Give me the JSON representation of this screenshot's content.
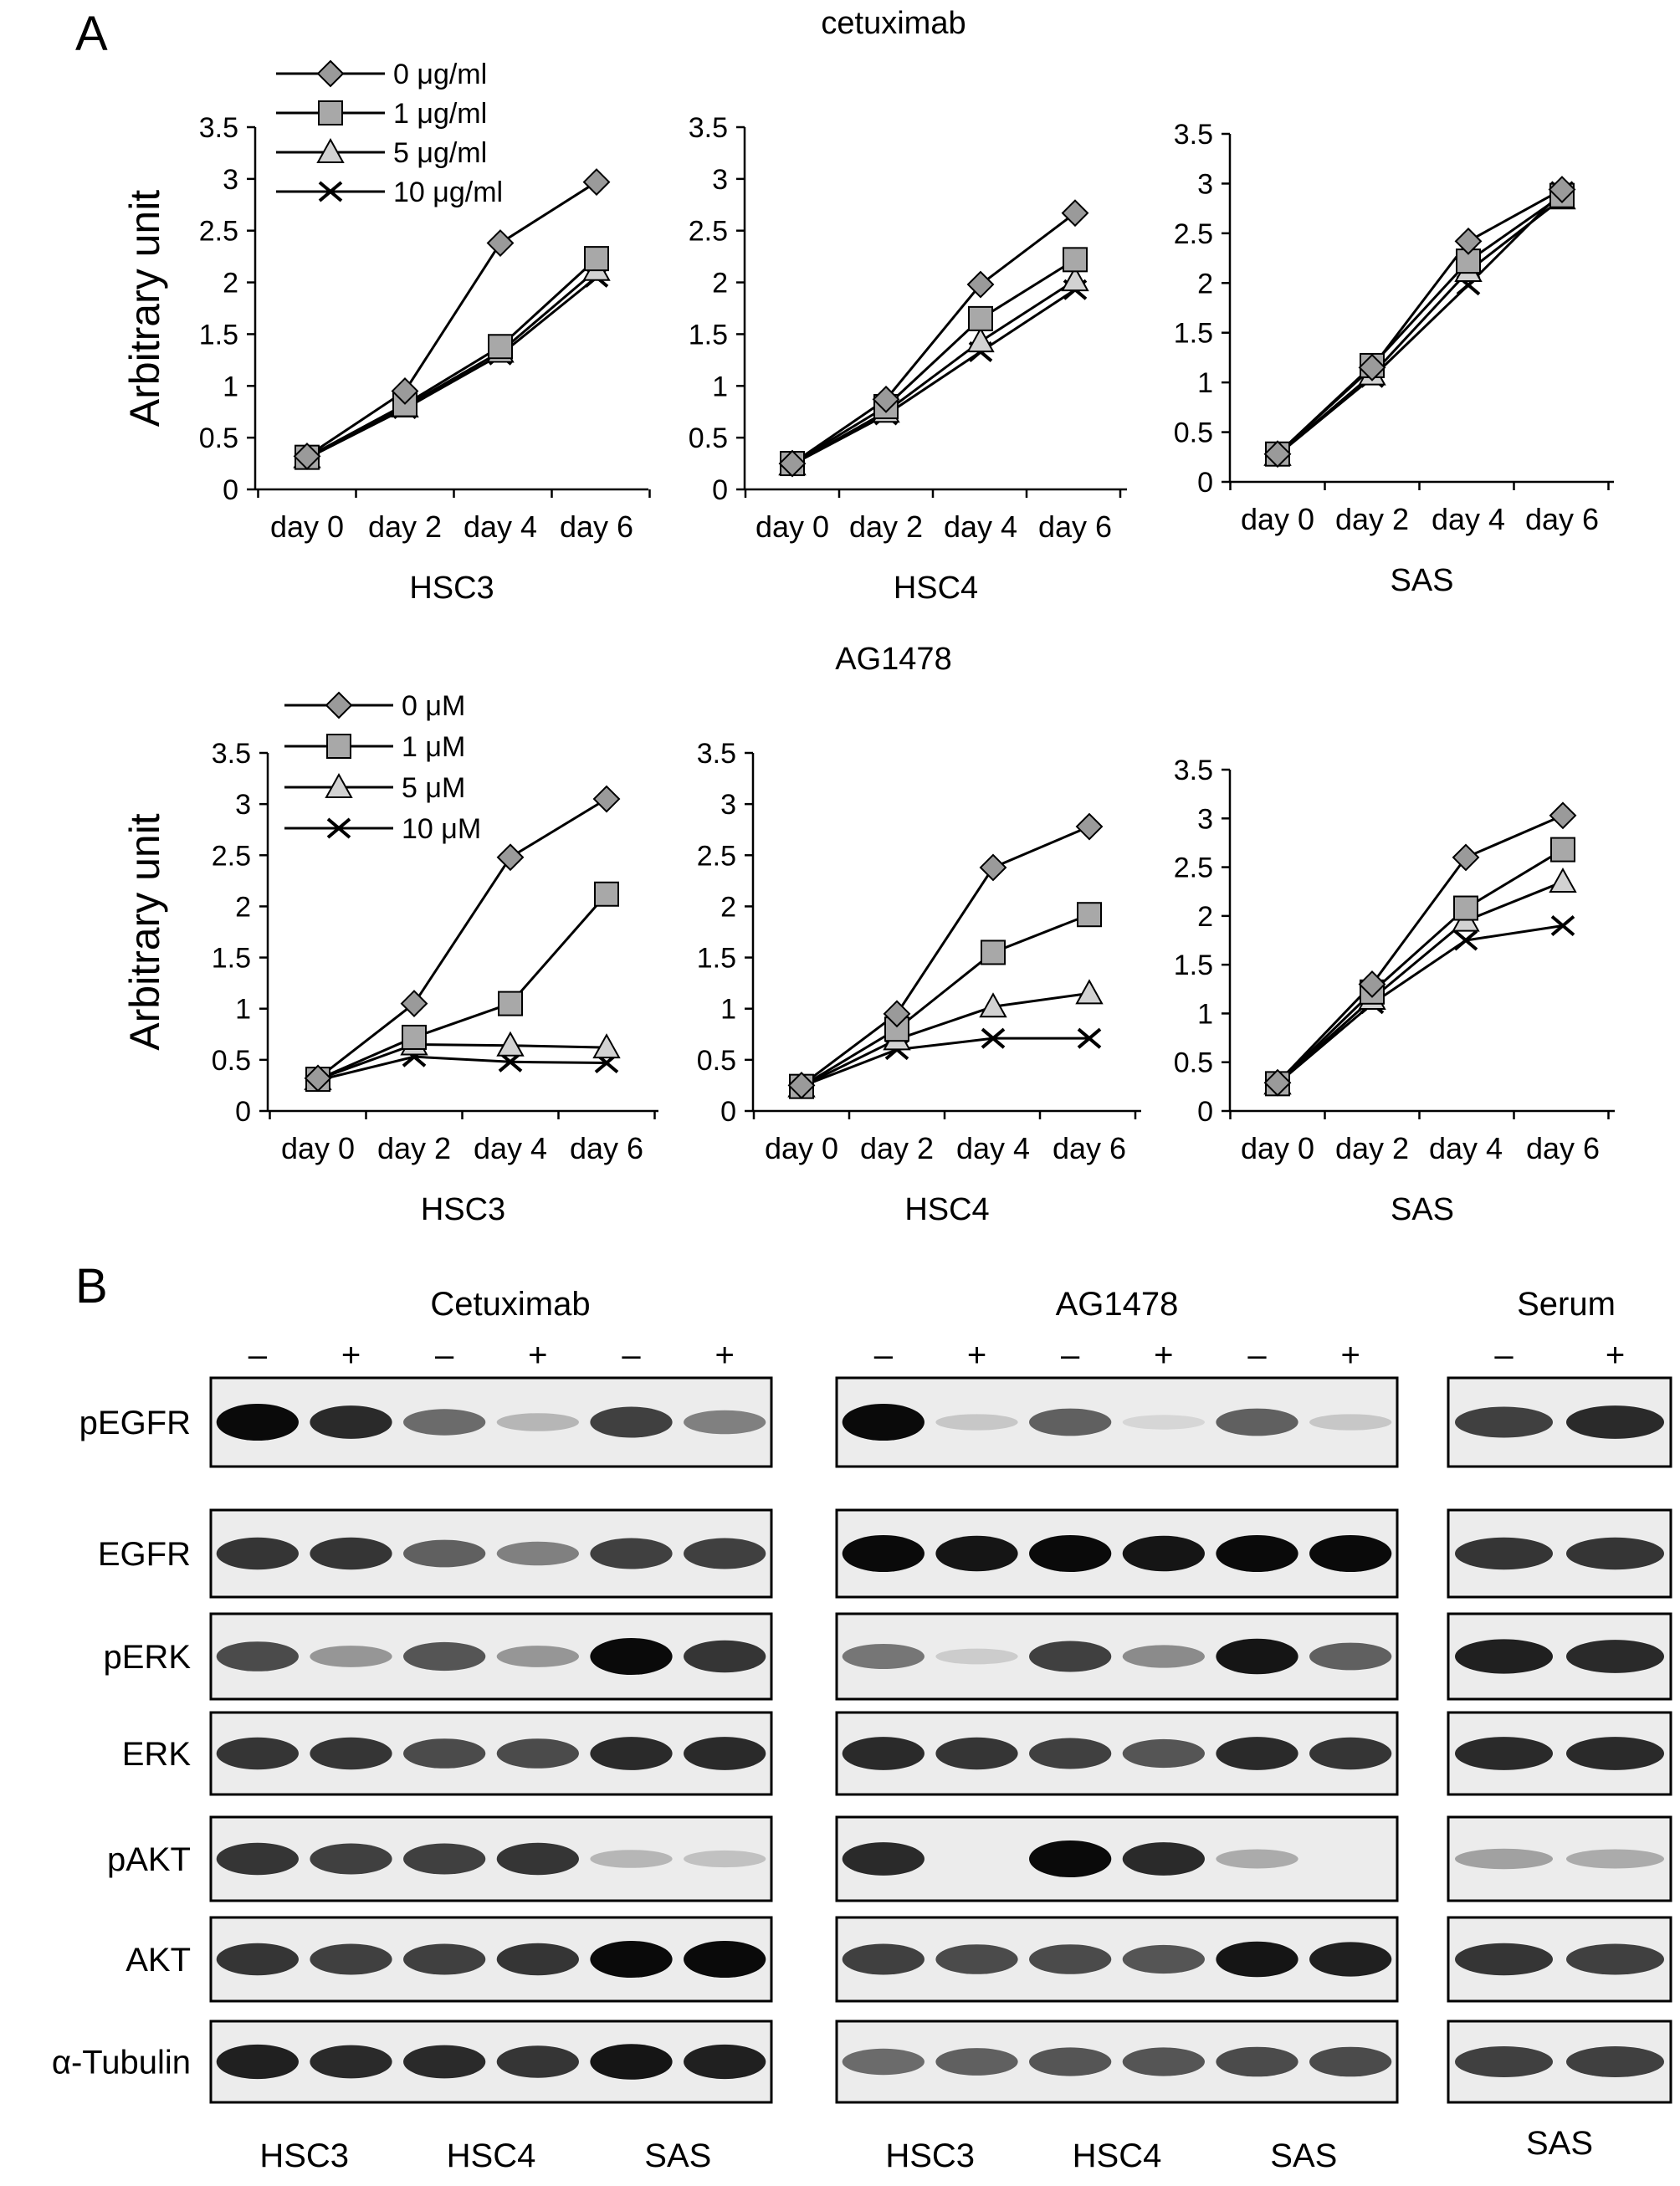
{
  "panel_labels": {
    "a": "A",
    "b": "B"
  },
  "panelA": {
    "cetuximab_title": "cetuximab",
    "ag1478_title": "AG1478",
    "ylabel": "Arbitrary unit",
    "yticks": [
      "0",
      "0.5",
      "1",
      "1.5",
      "2",
      "2.5",
      "3",
      "3.5"
    ],
    "xticks": [
      "day 0",
      "day 2",
      "day 4",
      "day 6"
    ],
    "legend_cetuximab": [
      "0 μg/ml",
      "1 μg/ml",
      "5 μg/ml",
      "10 μg/ml"
    ],
    "legend_ag1478": [
      "0 μM",
      "1 μM",
      "5 μM",
      "10 μM"
    ]
  },
  "chart_data": [
    {
      "type": "line",
      "title": "cetuximab",
      "xlabel": "HSC3",
      "ylabel": "Arbitrary unit",
      "categories": [
        "day 0",
        "day 2",
        "day 4",
        "day 6"
      ],
      "ylim": [
        0,
        3.5
      ],
      "series": [
        {
          "name": "0 μg/ml",
          "values": [
            0.32,
            0.95,
            2.38,
            2.97
          ]
        },
        {
          "name": "1 μg/ml",
          "values": [
            0.31,
            0.82,
            1.38,
            2.23
          ]
        },
        {
          "name": "5 μg/ml",
          "values": [
            0.31,
            0.8,
            1.33,
            2.12
          ]
        },
        {
          "name": "10 μg/ml",
          "values": [
            0.3,
            0.78,
            1.3,
            2.05
          ]
        }
      ]
    },
    {
      "type": "line",
      "title": "",
      "xlabel": "HSC4",
      "ylabel": "",
      "categories": [
        "day 0",
        "day 2",
        "day 4",
        "day 6"
      ],
      "ylim": [
        0,
        3.5
      ],
      "series": [
        {
          "name": "0 μg/ml",
          "values": [
            0.25,
            0.87,
            1.98,
            2.67
          ]
        },
        {
          "name": "1 μg/ml",
          "values": [
            0.25,
            0.8,
            1.65,
            2.22
          ]
        },
        {
          "name": "5 μg/ml",
          "values": [
            0.24,
            0.75,
            1.43,
            2.02
          ]
        },
        {
          "name": "10 μg/ml",
          "values": [
            0.24,
            0.72,
            1.33,
            1.93
          ]
        }
      ]
    },
    {
      "type": "line",
      "title": "",
      "xlabel": "SAS",
      "ylabel": "",
      "categories": [
        "day 0",
        "day 2",
        "day 4",
        "day 6"
      ],
      "ylim": [
        0,
        3.5
      ],
      "series": [
        {
          "name": "0 μg/ml",
          "values": [
            0.28,
            1.15,
            2.42,
            2.94
          ]
        },
        {
          "name": "1 μg/ml",
          "values": [
            0.28,
            1.17,
            2.22,
            2.88
          ]
        },
        {
          "name": "5 μg/ml",
          "values": [
            0.27,
            1.08,
            2.12,
            2.85
          ]
        },
        {
          "name": "10 μg/ml",
          "values": [
            0.27,
            1.05,
            1.98,
            2.92
          ]
        }
      ]
    },
    {
      "type": "line",
      "title": "AG1478",
      "xlabel": "HSC3",
      "ylabel": "Arbitrary unit",
      "categories": [
        "day 0",
        "day 2",
        "day 4",
        "day 6"
      ],
      "ylim": [
        0,
        3.5
      ],
      "series": [
        {
          "name": "0 μM",
          "values": [
            0.32,
            1.05,
            2.48,
            3.05
          ]
        },
        {
          "name": "1 μM",
          "values": [
            0.31,
            0.72,
            1.05,
            2.12
          ]
        },
        {
          "name": "5 μM",
          "values": [
            0.31,
            0.65,
            0.64,
            0.62
          ]
        },
        {
          "name": "10 μM",
          "values": [
            0.3,
            0.53,
            0.48,
            0.47
          ]
        }
      ]
    },
    {
      "type": "line",
      "title": "",
      "xlabel": "HSC4",
      "ylabel": "",
      "categories": [
        "day 0",
        "day 2",
        "day 4",
        "day 6"
      ],
      "ylim": [
        0,
        3.5
      ],
      "series": [
        {
          "name": "0 μM",
          "values": [
            0.25,
            0.95,
            2.38,
            2.78
          ]
        },
        {
          "name": "1 μM",
          "values": [
            0.24,
            0.8,
            1.55,
            1.92
          ]
        },
        {
          "name": "5 μM",
          "values": [
            0.24,
            0.7,
            1.02,
            1.15
          ]
        },
        {
          "name": "10 μM",
          "values": [
            0.24,
            0.6,
            0.71,
            0.71
          ]
        }
      ]
    },
    {
      "type": "line",
      "title": "",
      "xlabel": "SAS",
      "ylabel": "",
      "categories": [
        "day 0",
        "day 2",
        "day 4",
        "day 6"
      ],
      "ylim": [
        0,
        3.5
      ],
      "series": [
        {
          "name": "0 μM",
          "values": [
            0.29,
            1.3,
            2.6,
            3.03
          ]
        },
        {
          "name": "1 μM",
          "values": [
            0.28,
            1.22,
            2.08,
            2.68
          ]
        },
        {
          "name": "5 μM",
          "values": [
            0.28,
            1.15,
            1.95,
            2.35
          ]
        },
        {
          "name": "10 μM",
          "values": [
            0.28,
            1.1,
            1.75,
            1.9
          ]
        }
      ]
    }
  ],
  "panelB": {
    "groups": [
      "Cetuximab",
      "AG1478",
      "Serum"
    ],
    "treatment_minus": "–",
    "treatment_plus": "+",
    "rows": [
      "pEGFR",
      "EGFR",
      "pERK",
      "ERK",
      "pAKT",
      "AKT",
      "α-Tubulin"
    ],
    "cell_lines_6": [
      "HSC3",
      "HSC4",
      "SAS"
    ],
    "cell_line_serum": "SAS"
  },
  "colors": {
    "diamond": "#9a9a9a",
    "square": "#a8a8a8",
    "triangle": "#d2d2d2",
    "line": "#000000"
  }
}
